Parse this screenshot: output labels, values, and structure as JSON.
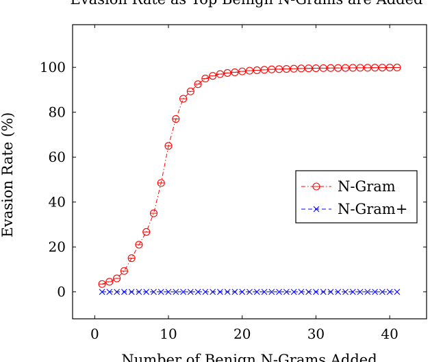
{
  "chart_data": {
    "type": "line",
    "title": "Evasion Rate as Top Benign N-Grams are Added",
    "xlabel": "Number of Benign N-Grams Added",
    "ylabel": "Evasion Rate (%)",
    "xlim": [
      -3,
      45
    ],
    "ylim": [
      -12,
      119
    ],
    "xticks": [
      0,
      10,
      20,
      30,
      40
    ],
    "yticks": [
      0,
      20,
      40,
      60,
      80,
      100
    ],
    "grid": false,
    "legend_position": "center-right",
    "x": [
      1,
      2,
      3,
      4,
      5,
      6,
      7,
      8,
      9,
      10,
      11,
      12,
      13,
      14,
      15,
      16,
      17,
      18,
      19,
      20,
      21,
      22,
      23,
      24,
      25,
      26,
      27,
      28,
      29,
      30,
      31,
      32,
      33,
      34,
      35,
      36,
      37,
      38,
      39,
      40,
      41
    ],
    "series": [
      {
        "name": "N-Gram",
        "color": "#ff0000",
        "marker": "circle-dot",
        "line_style": "dash-dot",
        "values": [
          3.5,
          4.5,
          6,
          9.3,
          15,
          21,
          26.7,
          35,
          48.5,
          65,
          77,
          86,
          89.3,
          92.5,
          95,
          96.2,
          97,
          97.5,
          97.8,
          98.2,
          98.5,
          98.7,
          98.9,
          99.1,
          99.2,
          99.3,
          99.4,
          99.5,
          99.55,
          99.6,
          99.65,
          99.7,
          99.72,
          99.75,
          99.78,
          99.8,
          99.82,
          99.85,
          99.87,
          99.9,
          99.92
        ]
      },
      {
        "name": "N-Gram+",
        "color": "#0000ff",
        "marker": "x",
        "line_style": "dashed",
        "values": [
          0,
          0,
          0,
          0,
          0,
          0,
          0,
          0,
          0,
          0,
          0,
          0,
          0,
          0,
          0,
          0,
          0,
          0,
          0,
          0,
          0,
          0,
          0,
          0,
          0,
          0,
          0,
          0,
          0,
          0,
          0,
          0,
          0,
          0,
          0,
          0,
          0,
          0,
          0,
          0,
          0
        ]
      }
    ]
  }
}
